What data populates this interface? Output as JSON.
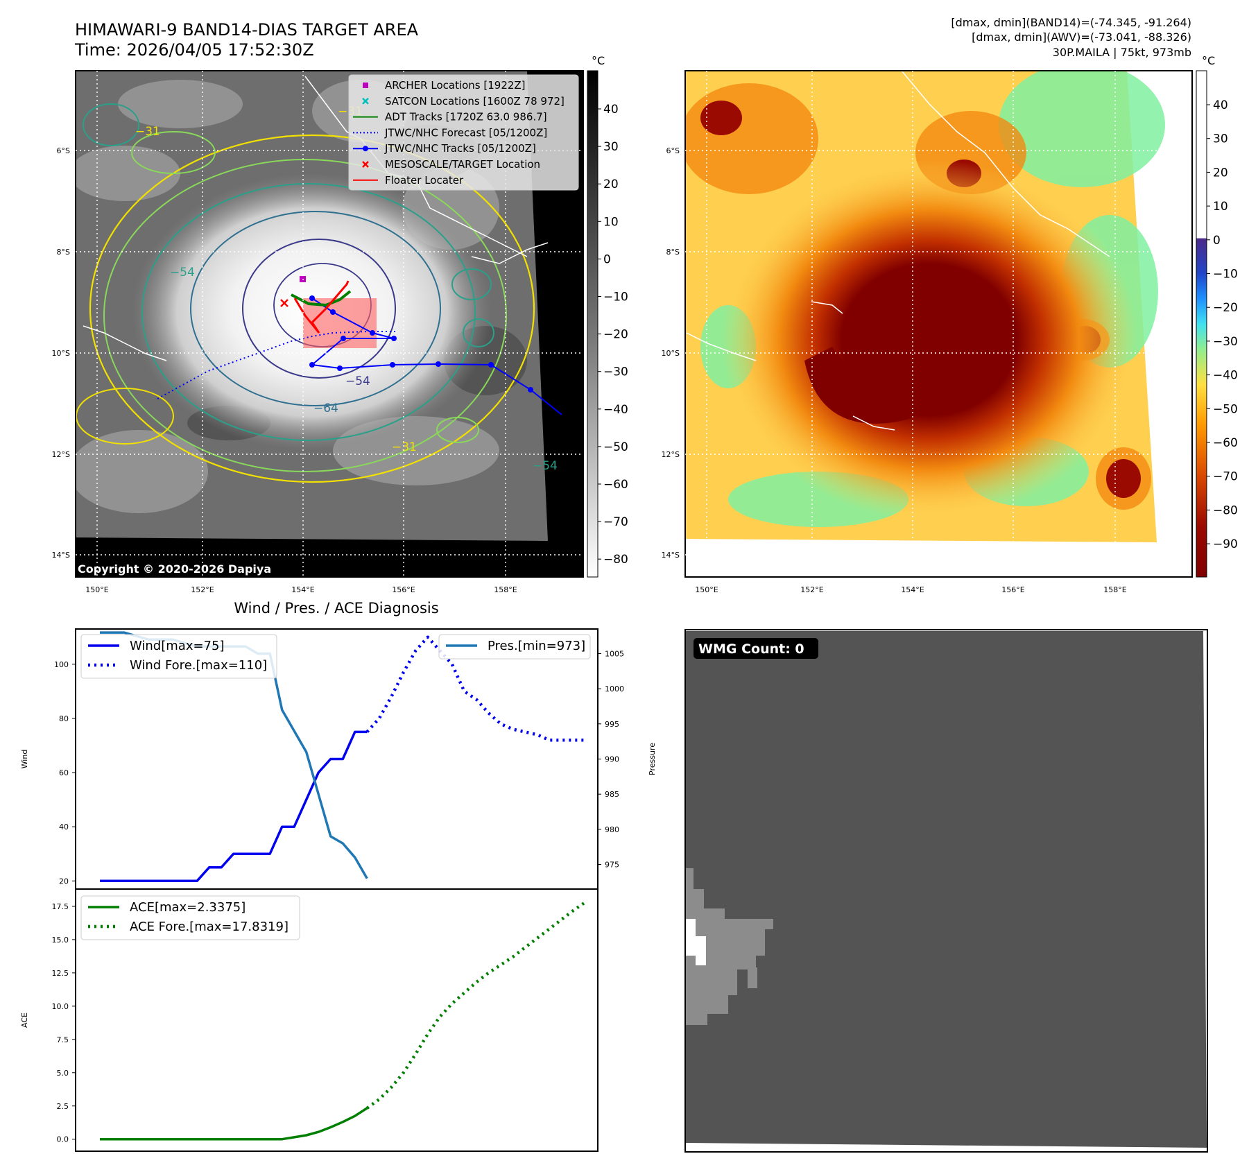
{
  "header": {
    "title_line1": "HIMAWARI-9 BAND14-DIAS TARGET AREA",
    "title_line2": "Time: 2026/04/05 17:52:30Z",
    "info_line1": "[dmax, dmin](BAND14)=(-74.345, -91.264)",
    "info_line2": "[dmax, dmin](AWV)=(-73.041, -88.326)",
    "info_line3": "30P.MAILA | 75kt, 973mb"
  },
  "maps": {
    "lon_labels": [
      "150°E",
      "152°E",
      "154°E",
      "156°E",
      "158°E"
    ],
    "lat_labels": [
      "6°S",
      "8°S",
      "10°S",
      "12°S",
      "14°S"
    ],
    "copyright": "Copyright © 2020-2026 Dapiya",
    "colorbar_unit": "°C",
    "cb1_ticks": [
      "40",
      "30",
      "20",
      "10",
      "0",
      "−10",
      "−20",
      "−30",
      "−40",
      "−50",
      "−60",
      "−70",
      "−80"
    ],
    "cb2_ticks": [
      "40",
      "30",
      "20",
      "10",
      "0",
      "−10",
      "−20",
      "−30",
      "−40",
      "−50",
      "−60",
      "−70",
      "−80",
      "−90"
    ],
    "contour_labels": [
      "−54",
      "−64",
      "−31",
      "−54",
      "−31",
      "−31",
      "−54"
    ],
    "legend": [
      {
        "label": "ARCHER Locations [1922Z]",
        "color": "#bf00bf",
        "marker": "square"
      },
      {
        "label": "SATCON Locations [1600Z 78 972]",
        "color": "#00bfbf",
        "marker": "x"
      },
      {
        "label": "ADT Tracks [1720Z 63.0 986.7]",
        "color": "#008000",
        "marker": "line"
      },
      {
        "label": "JTWC/NHC Forecast [05/1200Z]",
        "color": "#0000ff",
        "marker": "dotted"
      },
      {
        "label": "JTWC/NHC Tracks [05/1200Z]",
        "color": "#0000ff",
        "marker": "line-dot"
      },
      {
        "label": "MESOSCALE/TARGET Location",
        "color": "#ff0000",
        "marker": "x"
      },
      {
        "label": "Floater Locater",
        "color": "#ff0000",
        "marker": "line"
      }
    ]
  },
  "wmg": {
    "label": "WMG Count: 0"
  },
  "chart_data": [
    {
      "type": "line",
      "title": "Wind / Pres. / ACE Diagnosis",
      "ylabel": "Wind",
      "ylabel_right": "Pressure",
      "yticks_left": [
        "20",
        "40",
        "60",
        "80",
        "100"
      ],
      "yticks_right": [
        "975",
        "980",
        "985",
        "990",
        "995",
        "1000",
        "1005"
      ],
      "ylim": [
        17,
        113
      ],
      "ylim_right": [
        971.5,
        1008.5
      ],
      "series": [
        {
          "name": "Wind[max=75]",
          "axis": "left",
          "style": "solid",
          "color": "#0000ee",
          "x": [
            0,
            1,
            2,
            3,
            4,
            5,
            6,
            7,
            8,
            9,
            10,
            11,
            12,
            13,
            14,
            15,
            16,
            17,
            18,
            19,
            20,
            21,
            22
          ],
          "values": [
            20,
            20,
            20,
            20,
            20,
            20,
            20,
            20,
            20,
            25,
            25,
            30,
            30,
            30,
            30,
            40,
            40,
            50,
            60,
            65,
            65,
            75,
            75
          ]
        },
        {
          "name": "Wind Fore.[max=110]",
          "axis": "left",
          "style": "dotted",
          "color": "#0000ee",
          "x": [
            22,
            23,
            24,
            25,
            26,
            27,
            28,
            29,
            30,
            31,
            32,
            33,
            34,
            35,
            36,
            37,
            38,
            39,
            40
          ],
          "values": [
            75,
            80,
            88,
            97,
            105,
            110,
            105,
            100,
            90,
            87,
            82,
            78,
            76,
            75,
            74,
            72,
            72,
            72,
            72
          ]
        },
        {
          "name": "Pres.[min=973]",
          "axis": "right",
          "style": "solid",
          "color": "#1f77b4",
          "x": [
            0,
            2,
            4,
            6,
            8,
            10,
            12,
            13,
            14,
            15,
            16,
            17,
            18,
            19,
            20,
            21,
            22
          ],
          "values": [
            1008,
            1008,
            1007,
            1007,
            1006,
            1006,
            1006,
            1005,
            1005,
            997,
            994,
            991,
            985,
            979,
            978,
            976,
            973
          ]
        }
      ]
    },
    {
      "type": "line",
      "ylabel": "ACE",
      "yticks": [
        "0.0",
        "2.5",
        "5.0",
        "7.5",
        "10.0",
        "12.5",
        "15.0",
        "17.5"
      ],
      "ylim": [
        -0.9,
        18.8
      ],
      "series": [
        {
          "name": "ACE[max=2.3375]",
          "style": "solid",
          "color": "#007f00",
          "x": [
            0,
            3,
            6,
            9,
            12,
            15,
            16,
            17,
            18,
            19,
            20,
            21,
            22
          ],
          "values": [
            0,
            0,
            0,
            0,
            0,
            0,
            0.15,
            0.3,
            0.55,
            0.9,
            1.3,
            1.75,
            2.3375
          ]
        },
        {
          "name": "ACE Fore.[max=17.8319]",
          "style": "dotted",
          "color": "#007f00",
          "x": [
            22,
            23,
            24,
            25,
            26,
            27,
            28,
            29,
            30,
            31,
            32,
            33,
            34,
            35,
            36,
            37,
            38,
            39,
            40
          ],
          "values": [
            2.3375,
            3.0,
            3.9,
            5.0,
            6.4,
            7.9,
            9.2,
            10.2,
            11.0,
            11.8,
            12.5,
            13.1,
            13.7,
            14.4,
            15.1,
            15.8,
            16.5,
            17.2,
            17.8319
          ]
        }
      ]
    }
  ]
}
